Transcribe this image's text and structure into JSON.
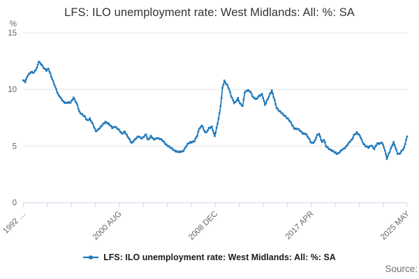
{
  "header": {
    "title": "LFS: ILO unemployment rate: West Midlands: All: %: SA"
  },
  "y_axis": {
    "unit": "%",
    "tick_labels": [
      "15",
      "10",
      "5",
      "0"
    ]
  },
  "x_axis": {
    "labels": [
      "1992 …",
      "2000 AUG",
      "2008 DEC",
      "2017 APR",
      "2025 MAY"
    ],
    "tick_count": 17
  },
  "legend": {
    "label": "LFS: ILO unemployment rate: West Midlands: All: %: SA"
  },
  "footer": {
    "source_label": "Source:"
  },
  "colors": {
    "line": "#1f78ba",
    "grid": "#e6e6e6",
    "axis": "#ccd6eb",
    "muted_text": "#666666",
    "title_text": "#333333"
  },
  "chart_data": {
    "type": "line",
    "title": "LFS: ILO unemployment rate: West Midlands: All: %: SA",
    "xlabel": "",
    "ylabel": "%",
    "ylim": [
      0,
      15
    ],
    "y_ticks": [
      0,
      5,
      10,
      15
    ],
    "x_range": [
      "1992-04",
      "2025-05"
    ],
    "x_tick_labels": [
      "1992 …",
      "2000 AUG",
      "2008 DEC",
      "2017 APR",
      "2025 MAY"
    ],
    "grid": "horizontal",
    "legend_position": "bottom",
    "marker": "square",
    "frequency": "monthly",
    "series": [
      {
        "name": "LFS: ILO unemployment rate: West Midlands: All: %: SA",
        "points": [
          [
            "1992-04",
            10.8
          ],
          [
            "1992-06",
            10.65
          ],
          [
            "1992-09",
            11.3
          ],
          [
            "1992-12",
            11.55
          ],
          [
            "1993-03",
            11.45
          ],
          [
            "1993-06",
            11.9
          ],
          [
            "1993-08",
            12.5
          ],
          [
            "1993-11",
            12.15
          ],
          [
            "1994-01",
            11.9
          ],
          [
            "1994-04",
            11.7
          ],
          [
            "1994-06",
            11.85
          ],
          [
            "1994-09",
            11.1
          ],
          [
            "1994-12",
            10.5
          ],
          [
            "1995-02",
            10.05
          ],
          [
            "1995-04",
            9.55
          ],
          [
            "1995-07",
            9.2
          ],
          [
            "1995-10",
            8.9
          ],
          [
            "1996-01",
            8.8
          ],
          [
            "1996-05",
            8.85
          ],
          [
            "1996-08",
            9.3
          ],
          [
            "1996-12",
            8.6
          ],
          [
            "1997-02",
            8.05
          ],
          [
            "1997-05",
            7.8
          ],
          [
            "1997-08",
            7.55
          ],
          [
            "1997-10",
            7.25
          ],
          [
            "1998-01",
            7.45
          ],
          [
            "1998-04",
            6.9
          ],
          [
            "1998-07",
            6.3
          ],
          [
            "1998-11",
            6.6
          ],
          [
            "1999-02",
            6.85
          ],
          [
            "1999-05",
            7.15
          ],
          [
            "1999-08",
            7.0
          ],
          [
            "1999-12",
            6.6
          ],
          [
            "2000-03",
            6.75
          ],
          [
            "2000-07",
            6.4
          ],
          [
            "2000-10",
            6.1
          ],
          [
            "2001-01",
            6.3
          ],
          [
            "2001-03",
            5.95
          ],
          [
            "2001-08",
            5.3
          ],
          [
            "2001-12",
            5.6
          ],
          [
            "2002-03",
            5.85
          ],
          [
            "2002-07",
            5.7
          ],
          [
            "2002-11",
            6.0
          ],
          [
            "2003-01",
            5.55
          ],
          [
            "2003-04",
            5.9
          ],
          [
            "2003-07",
            5.55
          ],
          [
            "2003-11",
            5.75
          ],
          [
            "2004-03",
            5.55
          ],
          [
            "2004-06",
            5.3
          ],
          [
            "2004-10",
            5.0
          ],
          [
            "2005-01",
            4.8
          ],
          [
            "2005-05",
            4.6
          ],
          [
            "2005-09",
            4.45
          ],
          [
            "2006-01",
            4.55
          ],
          [
            "2006-03",
            4.8
          ],
          [
            "2006-06",
            5.15
          ],
          [
            "2006-09",
            5.35
          ],
          [
            "2007-01",
            5.45
          ],
          [
            "2007-04",
            5.9
          ],
          [
            "2007-06",
            6.55
          ],
          [
            "2007-09",
            6.85
          ],
          [
            "2007-11",
            6.35
          ],
          [
            "2008-01",
            6.15
          ],
          [
            "2008-04",
            6.6
          ],
          [
            "2008-07",
            6.7
          ],
          [
            "2008-09",
            6.1
          ],
          [
            "2008-10",
            5.85
          ],
          [
            "2008-12",
            6.6
          ],
          [
            "2009-03",
            7.9
          ],
          [
            "2009-05",
            9.2
          ],
          [
            "2009-06",
            10.1
          ],
          [
            "2009-08",
            10.75
          ],
          [
            "2009-11",
            10.4
          ],
          [
            "2010-01",
            10.0
          ],
          [
            "2010-03",
            9.4
          ],
          [
            "2010-06",
            8.85
          ],
          [
            "2010-08",
            8.95
          ],
          [
            "2010-10",
            9.2
          ],
          [
            "2010-12",
            8.75
          ],
          [
            "2011-03",
            8.55
          ],
          [
            "2011-05",
            9.75
          ],
          [
            "2011-08",
            9.9
          ],
          [
            "2011-11",
            9.8
          ],
          [
            "2012-02",
            9.3
          ],
          [
            "2012-05",
            9.1
          ],
          [
            "2012-08",
            9.45
          ],
          [
            "2012-11",
            9.6
          ],
          [
            "2013-02",
            8.6
          ],
          [
            "2013-04",
            9.0
          ],
          [
            "2013-07",
            9.6
          ],
          [
            "2013-09",
            9.9
          ],
          [
            "2013-12",
            9.0
          ],
          [
            "2014-02",
            8.4
          ],
          [
            "2014-05",
            8.1
          ],
          [
            "2014-09",
            7.75
          ],
          [
            "2014-11",
            7.65
          ],
          [
            "2015-02",
            7.4
          ],
          [
            "2015-05",
            7.0
          ],
          [
            "2015-08",
            6.6
          ],
          [
            "2015-12",
            6.5
          ],
          [
            "2016-03",
            6.3
          ],
          [
            "2016-05",
            6.15
          ],
          [
            "2016-08",
            6.1
          ],
          [
            "2016-11",
            5.7
          ],
          [
            "2017-02",
            5.3
          ],
          [
            "2017-05",
            5.35
          ],
          [
            "2017-08",
            5.95
          ],
          [
            "2017-10",
            6.1
          ],
          [
            "2018-01",
            5.35
          ],
          [
            "2018-03",
            5.55
          ],
          [
            "2018-05",
            5.0
          ],
          [
            "2018-08",
            4.8
          ],
          [
            "2018-12",
            4.55
          ],
          [
            "2019-04",
            4.35
          ],
          [
            "2019-06",
            4.4
          ],
          [
            "2019-09",
            4.6
          ],
          [
            "2019-12",
            4.8
          ],
          [
            "2020-03",
            5.1
          ],
          [
            "2020-06",
            5.4
          ],
          [
            "2020-08",
            5.55
          ],
          [
            "2020-10",
            6.0
          ],
          [
            "2021-01",
            6.2
          ],
          [
            "2021-03",
            6.0
          ],
          [
            "2021-05",
            5.75
          ],
          [
            "2021-07",
            5.35
          ],
          [
            "2021-10",
            5.0
          ],
          [
            "2022-01",
            4.85
          ],
          [
            "2022-04",
            5.1
          ],
          [
            "2022-07",
            4.75
          ],
          [
            "2022-10",
            5.2
          ],
          [
            "2023-01",
            5.25
          ],
          [
            "2023-03",
            5.35
          ],
          [
            "2023-06",
            4.6
          ],
          [
            "2023-08",
            3.9
          ],
          [
            "2023-10",
            4.35
          ],
          [
            "2023-12",
            4.75
          ],
          [
            "2024-03",
            5.3
          ],
          [
            "2024-05",
            4.85
          ],
          [
            "2024-07",
            4.4
          ],
          [
            "2024-09",
            4.3
          ],
          [
            "2024-12",
            4.6
          ],
          [
            "2025-02",
            4.85
          ],
          [
            "2025-04",
            5.6
          ],
          [
            "2025-05",
            5.85
          ]
        ]
      }
    ]
  }
}
